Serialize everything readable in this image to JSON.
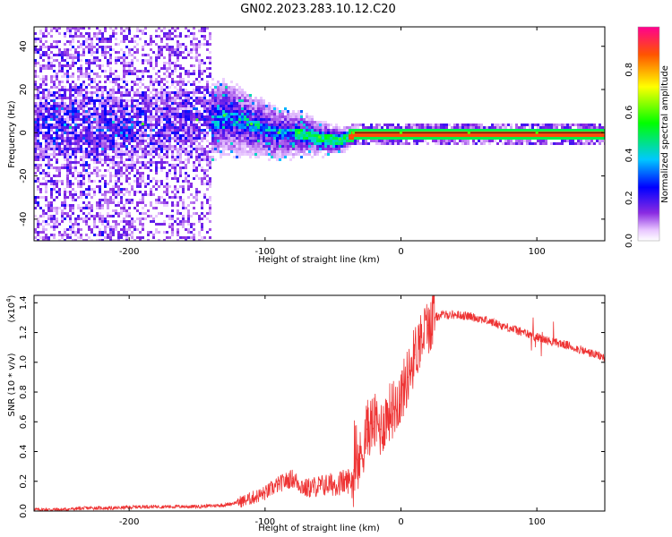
{
  "title": "GN02.2023.283.10.12.C20",
  "chart_data": [
    {
      "type": "heatmap",
      "xlabel": "Height of straight line (km)",
      "ylabel": "Frequency (Hz)",
      "xlim": [
        -270,
        150
      ],
      "ylim": [
        -50,
        49
      ],
      "x_ticks": [
        -200,
        -100,
        0,
        100
      ],
      "y_ticks": [
        -40,
        -20,
        0,
        20,
        40
      ],
      "colorbar": {
        "label": "Normalized spectral amplitude",
        "range": [
          0,
          1
        ],
        "ticks": [
          "0.0",
          "0.2",
          "0.4",
          "0.6",
          "0.8"
        ]
      },
      "ridge": [
        {
          "x": -190,
          "y": 4
        },
        {
          "x": -150,
          "y": 6
        },
        {
          "x": -130,
          "y": 8
        },
        {
          "x": -110,
          "y": 4
        },
        {
          "x": -90,
          "y": 0
        },
        {
          "x": -75,
          "y": 0
        },
        {
          "x": -60,
          "y": -2
        },
        {
          "x": -45,
          "y": -3
        },
        {
          "x": -35,
          "y": 0
        },
        {
          "x": 0,
          "y": 0
        },
        {
          "x": 50,
          "y": 0
        },
        {
          "x": 100,
          "y": 0
        },
        {
          "x": 150,
          "y": 0
        }
      ]
    },
    {
      "type": "line",
      "xlabel": "Height of straight line (km)",
      "ylabel": "SNR (10 * v/v)",
      "y_multiplier": "(x10^4)",
      "multiplier_base": "(x10",
      "multiplier_exp": "4",
      "multiplier_close": ")",
      "xlim": [
        -270,
        150
      ],
      "ylim": [
        0,
        1.45
      ],
      "x_ticks": [
        -200,
        -100,
        0,
        100
      ],
      "y_ticks": [
        "0.0",
        "0.2",
        "0.4",
        "0.6",
        "0.8",
        "1.0",
        "1.2",
        "1.4"
      ],
      "color": "#ee3333",
      "series": [
        {
          "x": [
            -270,
            -250,
            -230,
            -210,
            -190,
            -170,
            -150,
            -130,
            -115,
            -100,
            -90,
            -80,
            -70,
            -60,
            -50,
            -40,
            -35,
            -30,
            -25,
            -20,
            -15,
            -10,
            -5,
            0,
            5,
            10,
            15,
            20,
            25,
            30,
            40,
            50,
            60,
            70,
            80,
            90,
            100,
            110,
            120,
            130,
            140,
            150
          ],
          "values": [
            0.01,
            0.01,
            0.02,
            0.02,
            0.03,
            0.03,
            0.03,
            0.04,
            0.07,
            0.12,
            0.18,
            0.22,
            0.15,
            0.17,
            0.18,
            0.2,
            0.22,
            0.35,
            0.55,
            0.6,
            0.55,
            0.65,
            0.7,
            0.78,
            0.9,
            1.05,
            1.18,
            1.25,
            1.3,
            1.32,
            1.32,
            1.31,
            1.29,
            1.26,
            1.23,
            1.2,
            1.17,
            1.14,
            1.12,
            1.09,
            1.06,
            1.03
          ]
        }
      ]
    }
  ]
}
